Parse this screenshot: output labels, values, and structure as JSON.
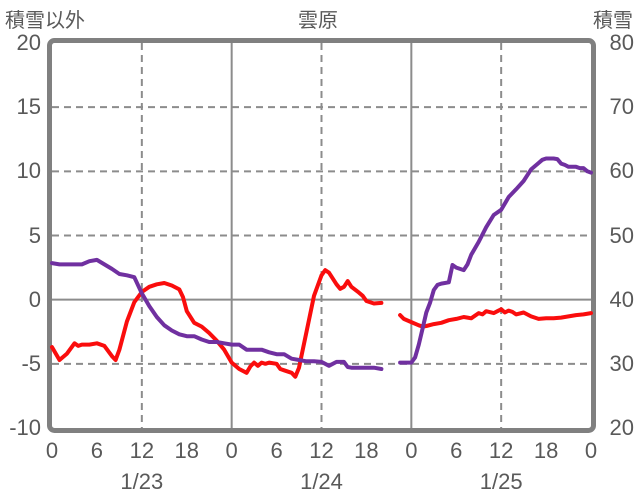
{
  "chart_data": {
    "type": "line",
    "title": "雲原",
    "left_axis": {
      "title": "積雪以外",
      "min": -10,
      "max": 20,
      "ticks": [
        20,
        15,
        10,
        5,
        0,
        -5,
        -10
      ]
    },
    "right_axis": {
      "title": "積雪",
      "min": 20,
      "max": 80,
      "ticks": [
        80,
        70,
        60,
        50,
        40,
        30,
        20
      ]
    },
    "x_axis": {
      "min_hour": 0,
      "max_hour": 72,
      "tick_step_hours": 6,
      "hour_tick_labels": [
        "0",
        "6",
        "12",
        "18",
        "0",
        "6",
        "12",
        "18",
        "0",
        "6",
        "12",
        "18",
        "0"
      ],
      "day_labels": [
        {
          "label": "1/23",
          "center_hour": 12
        },
        {
          "label": "1/24",
          "center_hour": 36
        },
        {
          "label": "1/25",
          "center_hour": 60
        }
      ]
    },
    "grid": {
      "h_dashed_left_values": [
        15,
        10,
        5,
        -5
      ],
      "h_solid_left_values": [
        0
      ],
      "v_dashed_hours": [
        12,
        36,
        60
      ],
      "v_solid_hours": [
        24,
        48
      ]
    },
    "colors": {
      "red_series": "#fa0d0d",
      "purple_series": "#7030a0",
      "grid": "#8c8c8c",
      "border": "#808080",
      "text": "#595959",
      "background": "#ffffff"
    },
    "series": [
      {
        "name": "積雪以外",
        "axis": "left",
        "color_key": "red_series",
        "segments": [
          [
            [
              0,
              -3.7
            ],
            [
              1,
              -4.7
            ],
            [
              2,
              -4.2
            ],
            [
              3,
              -3.4
            ],
            [
              3.5,
              -3.6
            ],
            [
              4,
              -3.5
            ],
            [
              5,
              -3.5
            ],
            [
              6,
              -3.4
            ],
            [
              7,
              -3.6
            ],
            [
              8,
              -4.4
            ],
            [
              8.5,
              -4.7
            ],
            [
              9,
              -3.9
            ],
            [
              10,
              -1.7
            ],
            [
              11,
              -0.2
            ],
            [
              12,
              0.6
            ],
            [
              13,
              1.0
            ],
            [
              14,
              1.2
            ],
            [
              15,
              1.3
            ],
            [
              16,
              1.1
            ],
            [
              17,
              0.8
            ],
            [
              17.5,
              0.2
            ],
            [
              18,
              -0.9
            ],
            [
              19,
              -1.8
            ],
            [
              20,
              -2.1
            ],
            [
              21,
              -2.6
            ],
            [
              22,
              -3.2
            ],
            [
              23,
              -3.9
            ],
            [
              24,
              -4.9
            ],
            [
              25,
              -5.4
            ],
            [
              26,
              -5.7
            ],
            [
              26.5,
              -5.2
            ],
            [
              27,
              -4.9
            ],
            [
              27.5,
              -5.15
            ],
            [
              28,
              -4.9
            ],
            [
              28.5,
              -5.0
            ],
            [
              29,
              -4.9
            ],
            [
              30,
              -5.0
            ],
            [
              30.5,
              -5.4
            ],
            [
              31,
              -5.5
            ],
            [
              32,
              -5.7
            ],
            [
              32.5,
              -6.0
            ],
            [
              33,
              -5.3
            ],
            [
              34,
              -2.5
            ],
            [
              35,
              0.3
            ],
            [
              36,
              1.9
            ],
            [
              36.5,
              2.3
            ],
            [
              37,
              2.1
            ],
            [
              38,
              1.2
            ],
            [
              38.5,
              0.85
            ],
            [
              39,
              1.0
            ],
            [
              39.5,
              1.45
            ],
            [
              40,
              1.0
            ],
            [
              41,
              0.55
            ],
            [
              41.5,
              0.3
            ],
            [
              42,
              -0.1
            ],
            [
              43,
              -0.3
            ],
            [
              44,
              -0.25
            ]
          ],
          [
            [
              46.5,
              -1.2
            ],
            [
              47,
              -1.5
            ],
            [
              48,
              -1.75
            ],
            [
              49,
              -2.0
            ],
            [
              49.5,
              -2.1
            ],
            [
              50,
              -2.05
            ],
            [
              51,
              -1.9
            ],
            [
              52,
              -1.8
            ],
            [
              53,
              -1.6
            ],
            [
              54,
              -1.5
            ],
            [
              55,
              -1.35
            ],
            [
              55.5,
              -1.4
            ],
            [
              56,
              -1.45
            ],
            [
              57,
              -1.05
            ],
            [
              57.5,
              -1.15
            ],
            [
              58,
              -0.9
            ],
            [
              59,
              -1.05
            ],
            [
              59.5,
              -0.9
            ],
            [
              60,
              -0.75
            ],
            [
              60.5,
              -1.0
            ],
            [
              61,
              -0.85
            ],
            [
              61.5,
              -0.95
            ],
            [
              62,
              -1.15
            ],
            [
              63,
              -1.0
            ],
            [
              64,
              -1.3
            ],
            [
              65,
              -1.5
            ],
            [
              66,
              -1.45
            ],
            [
              67,
              -1.45
            ],
            [
              68,
              -1.4
            ],
            [
              69,
              -1.3
            ],
            [
              70,
              -1.2
            ],
            [
              71,
              -1.15
            ],
            [
              72,
              -1.05
            ]
          ]
        ]
      },
      {
        "name": "積雪",
        "axis": "right",
        "color_key": "purple_series",
        "segments": [
          [
            [
              0,
              45.7
            ],
            [
              1,
              45.5
            ],
            [
              2,
              45.5
            ],
            [
              3,
              45.5
            ],
            [
              4,
              45.5
            ],
            [
              5,
              46
            ],
            [
              6,
              46.2
            ],
            [
              7,
              45.5
            ],
            [
              8,
              44.8
            ],
            [
              9,
              44
            ],
            [
              10,
              43.8
            ],
            [
              11,
              43.5
            ],
            [
              12,
              41
            ],
            [
              13,
              39
            ],
            [
              14,
              37.3
            ],
            [
              15,
              36
            ],
            [
              16,
              35.2
            ],
            [
              17,
              34.6
            ],
            [
              18,
              34.3
            ],
            [
              19,
              34.3
            ],
            [
              20,
              33.8
            ],
            [
              21,
              33.4
            ],
            [
              22,
              33.4
            ],
            [
              23,
              33.2
            ],
            [
              24,
              33
            ],
            [
              25,
              33
            ],
            [
              26,
              32.2
            ],
            [
              27,
              32.2
            ],
            [
              28,
              32.2
            ],
            [
              29,
              31.8
            ],
            [
              30,
              31.5
            ],
            [
              31,
              31.5
            ],
            [
              32,
              30.8
            ],
            [
              33,
              30.6
            ],
            [
              34,
              30.4
            ],
            [
              35,
              30.4
            ],
            [
              36,
              30.3
            ],
            [
              37,
              29.7
            ],
            [
              38,
              30.3
            ],
            [
              39,
              30.3
            ],
            [
              39.5,
              29.5
            ],
            [
              40,
              29.4
            ],
            [
              41,
              29.4
            ],
            [
              42,
              29.4
            ],
            [
              43,
              29.4
            ],
            [
              44,
              29.2
            ]
          ],
          [
            [
              46.5,
              30.2
            ],
            [
              47,
              30.2
            ],
            [
              48,
              30.2
            ],
            [
              48.5,
              31
            ],
            [
              49,
              33
            ],
            [
              49.5,
              35.5
            ],
            [
              50,
              38
            ],
            [
              50.5,
              39.5
            ],
            [
              51,
              41.5
            ],
            [
              51.5,
              42.3
            ],
            [
              52,
              42.5
            ],
            [
              53,
              42.7
            ],
            [
              53.5,
              45.4
            ],
            [
              54,
              45
            ],
            [
              55,
              44.6
            ],
            [
              55.5,
              45.5
            ],
            [
              56,
              47
            ],
            [
              57,
              49
            ],
            [
              58,
              51.3
            ],
            [
              59,
              53.2
            ],
            [
              60,
              54
            ],
            [
              61,
              56
            ],
            [
              62,
              57.2
            ],
            [
              63,
              58.5
            ],
            [
              64,
              60.3
            ],
            [
              65,
              61.3
            ],
            [
              65.5,
              61.8
            ],
            [
              66,
              62
            ],
            [
              67,
              62
            ],
            [
              67.5,
              61.9
            ],
            [
              68,
              61.2
            ],
            [
              68.5,
              61
            ],
            [
              69,
              60.7
            ],
            [
              70,
              60.7
            ],
            [
              70.5,
              60.5
            ],
            [
              71,
              60.5
            ],
            [
              71.5,
              60
            ],
            [
              72,
              59.8
            ]
          ]
        ]
      }
    ]
  }
}
